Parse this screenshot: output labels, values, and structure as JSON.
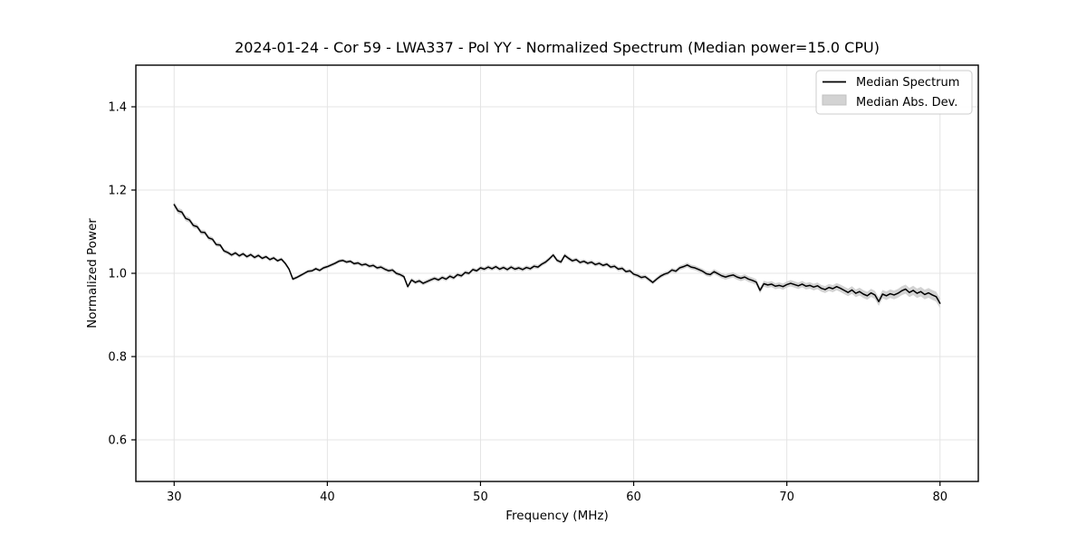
{
  "chart_data": {
    "type": "line",
    "title": "2024-01-24 - Cor 59 - LWA337 - Pol YY - Normalized Spectrum (Median power=15.0 CPU)",
    "xlabel": "Frequency (MHz)",
    "ylabel": "Normalized Power",
    "xlim": [
      27.5,
      82.5
    ],
    "ylim": [
      0.5,
      1.5
    ],
    "xtick_values": [
      30,
      40,
      50,
      60,
      70,
      80
    ],
    "xtick_labels": [
      "30",
      "40",
      "50",
      "60",
      "70",
      "80"
    ],
    "ytick_values": [
      0.6,
      0.8,
      1.0,
      1.2,
      1.4
    ],
    "ytick_labels": [
      "0.6",
      "0.8",
      "1.0",
      "1.2",
      "1.4"
    ],
    "grid": true,
    "legend": {
      "position": "upper right",
      "entries": [
        {
          "label": "Median Spectrum",
          "type": "line",
          "color": "#000000"
        },
        {
          "label": "Median Abs. Dev.",
          "type": "patch",
          "color": "#d3d3d3"
        }
      ]
    },
    "series": [
      {
        "name": "Median Spectrum",
        "x_start": 30.0,
        "x_step": 0.25,
        "values": [
          1.165,
          1.15,
          1.147,
          1.132,
          1.128,
          1.115,
          1.112,
          1.099,
          1.098,
          1.085,
          1.082,
          1.069,
          1.068,
          1.054,
          1.05,
          1.044,
          1.049,
          1.042,
          1.047,
          1.04,
          1.045,
          1.038,
          1.043,
          1.036,
          1.04,
          1.033,
          1.037,
          1.03,
          1.034,
          1.024,
          1.01,
          0.986,
          0.99,
          0.995,
          1.0,
          1.005,
          1.006,
          1.011,
          1.007,
          1.013,
          1.016,
          1.02,
          1.024,
          1.029,
          1.031,
          1.027,
          1.029,
          1.023,
          1.025,
          1.02,
          1.022,
          1.017,
          1.019,
          1.013,
          1.015,
          1.01,
          1.006,
          1.008,
          1.0,
          0.997,
          0.992,
          0.968,
          0.984,
          0.978,
          0.982,
          0.976,
          0.98,
          0.984,
          0.988,
          0.984,
          0.99,
          0.986,
          0.993,
          0.989,
          0.997,
          0.994,
          1.002,
          1.0,
          1.009,
          1.006,
          1.013,
          1.01,
          1.015,
          1.011,
          1.016,
          1.01,
          1.014,
          1.009,
          1.015,
          1.01,
          1.013,
          1.009,
          1.014,
          1.011,
          1.017,
          1.015,
          1.022,
          1.027,
          1.035,
          1.044,
          1.031,
          1.027,
          1.043,
          1.036,
          1.03,
          1.033,
          1.026,
          1.029,
          1.024,
          1.027,
          1.021,
          1.024,
          1.019,
          1.022,
          1.015,
          1.017,
          1.01,
          1.012,
          1.004,
          1.006,
          0.998,
          0.995,
          0.99,
          0.992,
          0.985,
          0.978,
          0.986,
          0.993,
          0.998,
          1.001,
          1.008,
          1.005,
          1.013,
          1.016,
          1.02,
          1.015,
          1.013,
          1.009,
          1.005,
          0.999,
          0.997,
          1.004,
          0.999,
          0.994,
          0.991,
          0.994,
          0.996,
          0.991,
          0.988,
          0.991,
          0.986,
          0.983,
          0.979,
          0.959,
          0.975,
          0.972,
          0.974,
          0.969,
          0.971,
          0.968,
          0.973,
          0.976,
          0.973,
          0.97,
          0.974,
          0.969,
          0.971,
          0.967,
          0.97,
          0.964,
          0.961,
          0.966,
          0.963,
          0.968,
          0.964,
          0.959,
          0.954,
          0.96,
          0.952,
          0.956,
          0.95,
          0.946,
          0.953,
          0.948,
          0.932,
          0.95,
          0.946,
          0.951,
          0.948,
          0.952,
          0.958,
          0.962,
          0.954,
          0.959,
          0.952,
          0.956,
          0.949,
          0.953,
          0.948,
          0.944,
          0.928
        ]
      }
    ],
    "mad_band": {
      "name": "Median Abs. Dev.",
      "x": [
        30,
        33,
        38,
        45,
        55,
        62,
        68,
        72,
        76,
        80
      ],
      "halfwidth": [
        0.007,
        0.005,
        0.004,
        0.005,
        0.005,
        0.005,
        0.007,
        0.008,
        0.01,
        0.012
      ]
    },
    "colors": {
      "line": "#000000",
      "band": "#d3d3d3",
      "grid": "#e4e4e4",
      "spine": "#000000",
      "legend_border": "#cccccc",
      "background": "#ffffff"
    }
  }
}
